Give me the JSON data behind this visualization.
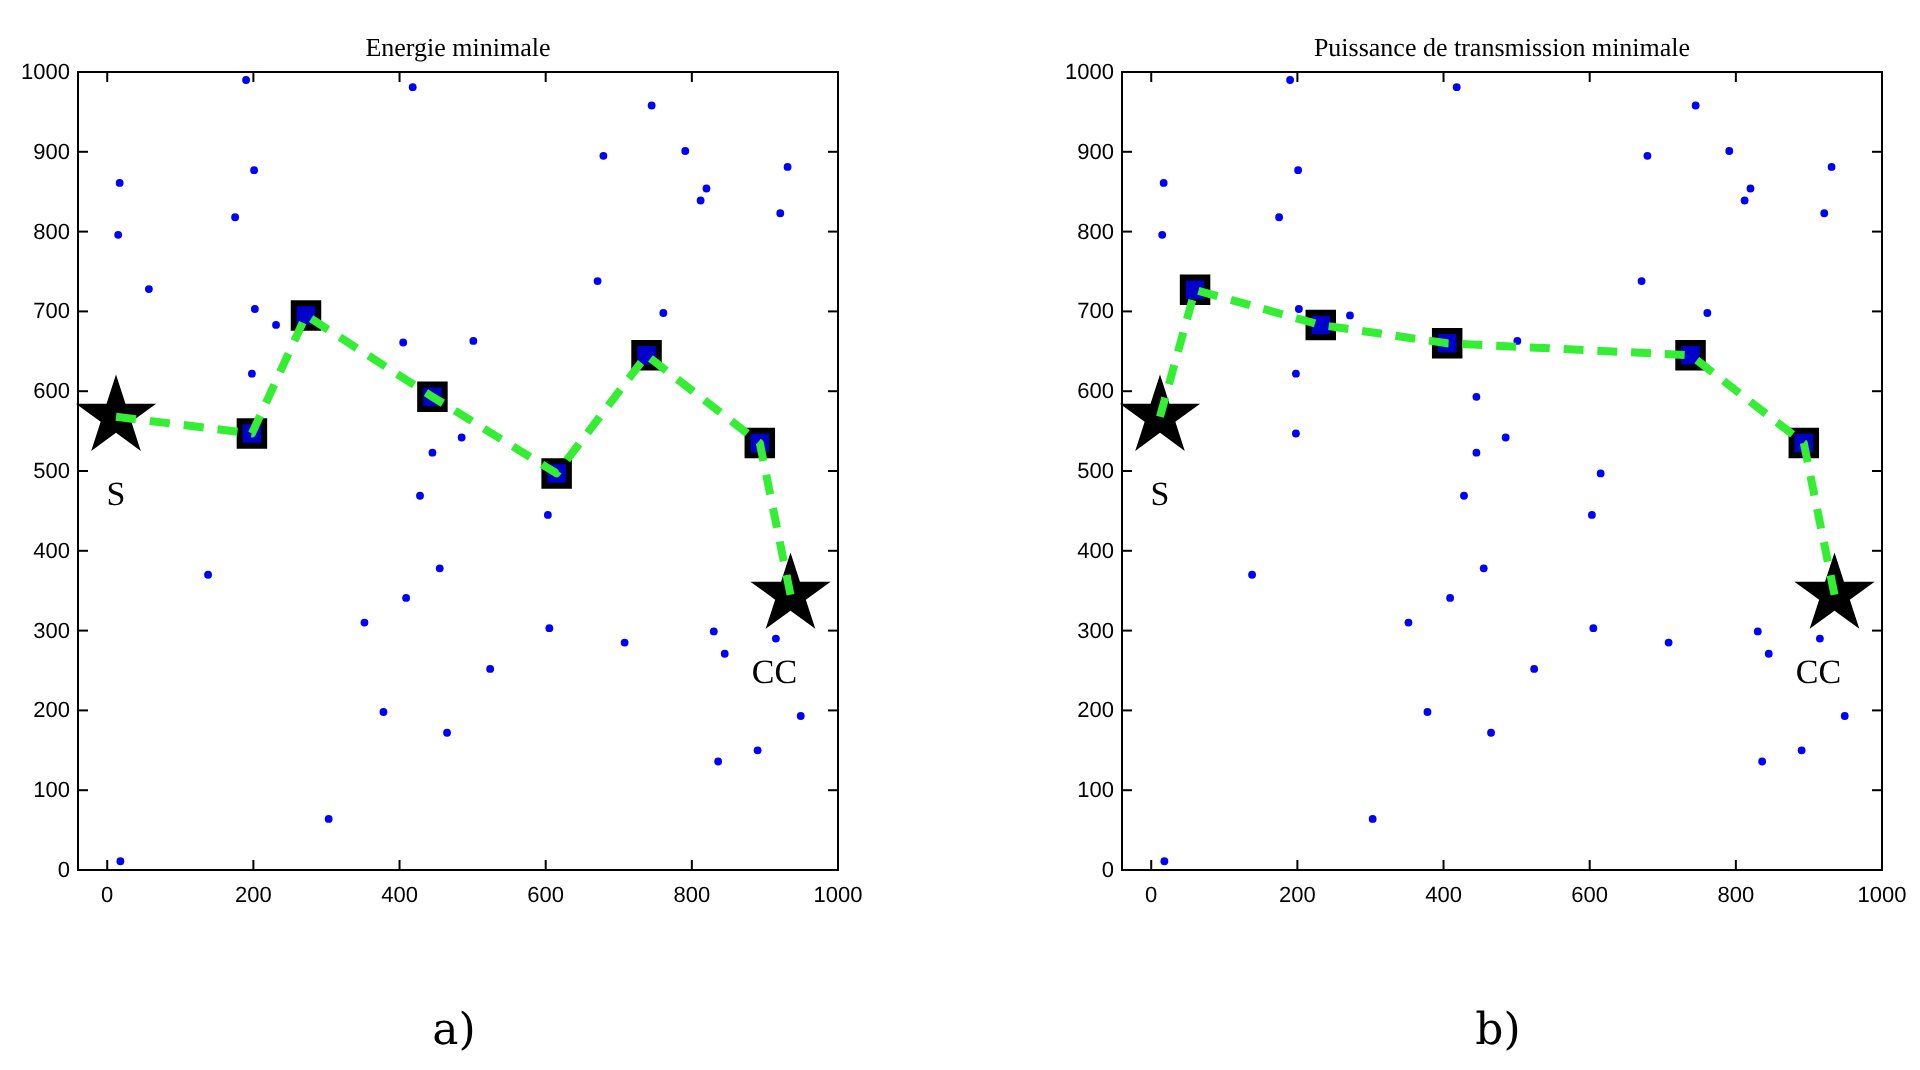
{
  "chart_data": [
    {
      "type": "scatter",
      "title": "Energie minimale",
      "xlim": [
        -40,
        1000
      ],
      "ylim": [
        0,
        1000
      ],
      "xticks": [
        0,
        200,
        400,
        600,
        800,
        1000
      ],
      "yticks": [
        0,
        100,
        200,
        300,
        400,
        500,
        600,
        700,
        800,
        900,
        1000
      ],
      "grid": false,
      "series": [
        {
          "marker": "circle",
          "color": "#0000ff",
          "x": [
            190,
            418,
            745,
            17,
            201,
            679,
            791,
            820,
            812,
            931,
            921,
            15,
            175,
            57,
            671,
            202,
            761,
            231,
            405,
            501,
            198,
            445,
            485,
            428,
            603,
            138,
            455,
            409,
            352,
            605,
            708,
            830,
            845,
            915,
            524,
            378,
            465,
            949,
            836,
            890,
            303,
            18
          ],
          "values": [
            990,
            981,
            958,
            861,
            877,
            895,
            901,
            854,
            839,
            881,
            823,
            796,
            818,
            728,
            738,
            703,
            698,
            683,
            661,
            663,
            622,
            523,
            542,
            469,
            445,
            370,
            378,
            341,
            310,
            303,
            285,
            299,
            271,
            290,
            252,
            198,
            172,
            193,
            136,
            150,
            64,
            11
          ]
        },
        {
          "type": "line",
          "marker": "none",
          "line_style": "dashed",
          "color": "#33ee33",
          "x": [
            12,
            198,
            272,
            445,
            615,
            738,
            893,
            935
          ],
          "values": [
            568,
            547,
            695,
            593,
            497,
            645,
            535,
            345
          ]
        },
        {
          "marker": "square",
          "color": "#0000cc",
          "x": [
            198,
            272,
            445,
            615,
            738,
            893
          ],
          "values": [
            547,
            695,
            593,
            497,
            645,
            535
          ]
        },
        {
          "marker": "star",
          "color": "#000000",
          "x": [
            12,
            935
          ],
          "values": [
            568,
            345
          ]
        }
      ],
      "annotations": [
        "S",
        "CC",
        "a)"
      ]
    },
    {
      "type": "scatter",
      "title": "Puissance de transmission minimale",
      "xlim": [
        -40,
        1000
      ],
      "ylim": [
        0,
        1000
      ],
      "xticks": [
        0,
        200,
        400,
        600,
        800,
        1000
      ],
      "yticks": [
        0,
        100,
        200,
        300,
        400,
        500,
        600,
        700,
        800,
        900,
        1000
      ],
      "grid": false,
      "series": [
        {
          "marker": "circle",
          "color": "#0000ff",
          "x": [
            190,
            418,
            745,
            17,
            201,
            679,
            791,
            820,
            812,
            931,
            921,
            15,
            175,
            671,
            202,
            761,
            272,
            501,
            198,
            198,
            445,
            445,
            485,
            428,
            603,
            615,
            138,
            455,
            409,
            352,
            605,
            708,
            830,
            845,
            915,
            524,
            378,
            465,
            949,
            836,
            890,
            303,
            18
          ],
          "values": [
            990,
            981,
            958,
            861,
            877,
            895,
            901,
            854,
            839,
            881,
            823,
            796,
            818,
            738,
            703,
            698,
            695,
            663,
            622,
            547,
            593,
            523,
            542,
            469,
            445,
            497,
            370,
            378,
            341,
            310,
            303,
            285,
            299,
            271,
            290,
            252,
            198,
            172,
            193,
            136,
            150,
            64,
            11
          ]
        },
        {
          "type": "line",
          "marker": "none",
          "line_style": "dashed",
          "color": "#33ee33",
          "x": [
            12,
            60,
            232,
            405,
            738,
            893,
            935
          ],
          "values": [
            568,
            727,
            683,
            660,
            645,
            535,
            345
          ]
        },
        {
          "marker": "square",
          "color": "#0000cc",
          "x": [
            60,
            232,
            405,
            738,
            893
          ],
          "values": [
            727,
            683,
            660,
            645,
            535
          ]
        },
        {
          "marker": "star",
          "color": "#000000",
          "x": [
            12,
            935
          ],
          "values": [
            568,
            345
          ]
        }
      ],
      "annotations": [
        "S",
        "CC",
        "b)"
      ]
    }
  ]
}
